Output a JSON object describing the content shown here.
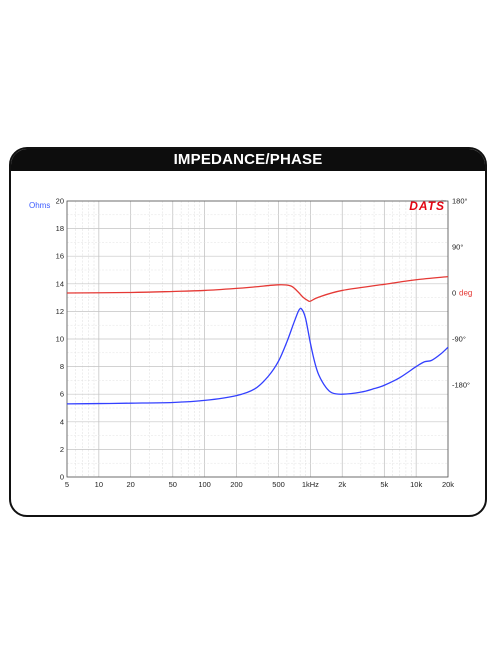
{
  "header": {
    "title": "IMPEDANCE/PHASE"
  },
  "chart_data": {
    "type": "line",
    "title": "IMPEDANCE/PHASE",
    "brand": "DATS",
    "brand_mark": "tm",
    "x_scale": "log",
    "xlim": [
      5,
      20000
    ],
    "x_ticks": [
      {
        "value": 5,
        "label": "5"
      },
      {
        "value": 10,
        "label": "10"
      },
      {
        "value": 20,
        "label": "20"
      },
      {
        "value": 50,
        "label": "50"
      },
      {
        "value": 100,
        "label": "100"
      },
      {
        "value": 200,
        "label": "200"
      },
      {
        "value": 500,
        "label": "500"
      },
      {
        "value": 1000,
        "label": "1kHz"
      },
      {
        "value": 2000,
        "label": "2k"
      },
      {
        "value": 5000,
        "label": "5k"
      },
      {
        "value": 10000,
        "label": "10k"
      },
      {
        "value": 20000,
        "label": "20k"
      }
    ],
    "y_left": {
      "unit_label": "Ohms",
      "ylim": [
        0,
        20
      ],
      "ticks": [
        0,
        2,
        4,
        6,
        8,
        10,
        12,
        14,
        16,
        18,
        20
      ]
    },
    "y_right": {
      "ylim": [
        -360,
        180
      ],
      "ticks": [
        {
          "value": 180,
          "label": "180°"
        },
        {
          "value": 90,
          "label": "90°"
        },
        {
          "value": 0,
          "label": "0"
        },
        {
          "value": -90,
          "label": "-90°"
        },
        {
          "value": -180,
          "label": "-180°"
        }
      ],
      "unit_label": "deg"
    },
    "grid": true,
    "series": [
      {
        "name": "Impedance",
        "axis": "left",
        "color": "#3340ff",
        "points": [
          [
            5,
            5.3
          ],
          [
            10,
            5.32
          ],
          [
            20,
            5.35
          ],
          [
            50,
            5.4
          ],
          [
            100,
            5.55
          ],
          [
            200,
            5.9
          ],
          [
            300,
            6.4
          ],
          [
            400,
            7.3
          ],
          [
            500,
            8.4
          ],
          [
            600,
            9.8
          ],
          [
            700,
            11.2
          ],
          [
            780,
            12.1
          ],
          [
            830,
            12.15
          ],
          [
            900,
            11.5
          ],
          [
            1000,
            9.7
          ],
          [
            1100,
            8.3
          ],
          [
            1200,
            7.4
          ],
          [
            1400,
            6.5
          ],
          [
            1600,
            6.1
          ],
          [
            2000,
            6.0
          ],
          [
            3000,
            6.15
          ],
          [
            4000,
            6.4
          ],
          [
            5000,
            6.65
          ],
          [
            7000,
            7.2
          ],
          [
            10000,
            8.0
          ],
          [
            12000,
            8.35
          ],
          [
            14000,
            8.45
          ],
          [
            17000,
            8.9
          ],
          [
            20000,
            9.4
          ]
        ]
      },
      {
        "name": "Phase",
        "axis": "right",
        "color": "#e53935",
        "points": [
          [
            5,
            0
          ],
          [
            20,
            1
          ],
          [
            50,
            3
          ],
          [
            100,
            5
          ],
          [
            200,
            9
          ],
          [
            300,
            12
          ],
          [
            500,
            16
          ],
          [
            650,
            14
          ],
          [
            750,
            4
          ],
          [
            850,
            -8
          ],
          [
            950,
            -15
          ],
          [
            1000,
            -16
          ],
          [
            1200,
            -8
          ],
          [
            2000,
            5
          ],
          [
            5000,
            17
          ],
          [
            10000,
            26
          ],
          [
            20000,
            32
          ]
        ]
      }
    ]
  }
}
